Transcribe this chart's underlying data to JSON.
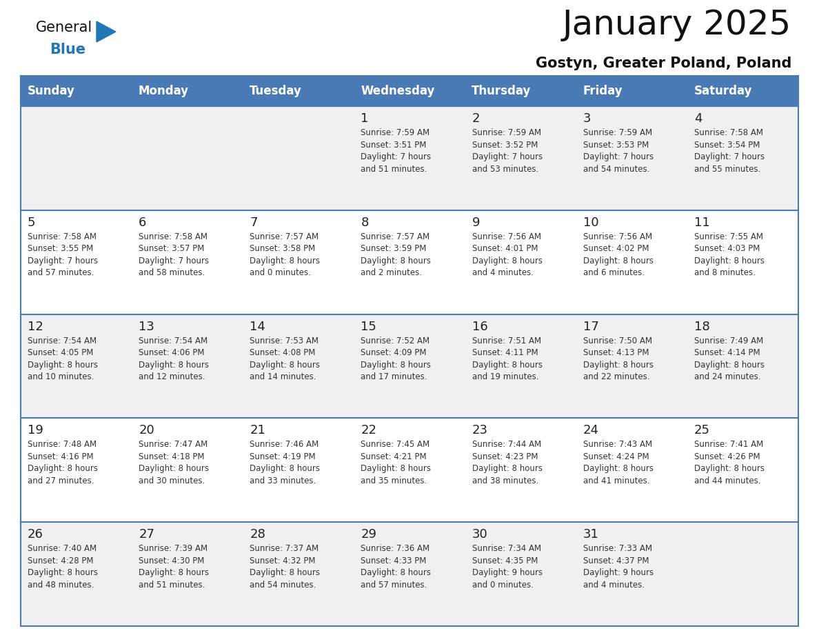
{
  "title": "January 2025",
  "subtitle": "Gostyn, Greater Poland, Poland",
  "days_of_week": [
    "Sunday",
    "Monday",
    "Tuesday",
    "Wednesday",
    "Thursday",
    "Friday",
    "Saturday"
  ],
  "header_bg": "#4a7ab5",
  "header_text": "#ffffff",
  "row_bg_light": "#f0f0f0",
  "row_bg_white": "#ffffff",
  "border_color": "#4a7ab5",
  "day_num_color": "#222222",
  "cell_text_color": "#333333",
  "title_color": "#111111",
  "subtitle_color": "#111111",
  "logo_general_color": "#111111",
  "logo_blue_color": "#2176b5",
  "calendar": [
    [
      {
        "day": null,
        "info": ""
      },
      {
        "day": null,
        "info": ""
      },
      {
        "day": null,
        "info": ""
      },
      {
        "day": 1,
        "info": "Sunrise: 7:59 AM\nSunset: 3:51 PM\nDaylight: 7 hours\nand 51 minutes."
      },
      {
        "day": 2,
        "info": "Sunrise: 7:59 AM\nSunset: 3:52 PM\nDaylight: 7 hours\nand 53 minutes."
      },
      {
        "day": 3,
        "info": "Sunrise: 7:59 AM\nSunset: 3:53 PM\nDaylight: 7 hours\nand 54 minutes."
      },
      {
        "day": 4,
        "info": "Sunrise: 7:58 AM\nSunset: 3:54 PM\nDaylight: 7 hours\nand 55 minutes."
      }
    ],
    [
      {
        "day": 5,
        "info": "Sunrise: 7:58 AM\nSunset: 3:55 PM\nDaylight: 7 hours\nand 57 minutes."
      },
      {
        "day": 6,
        "info": "Sunrise: 7:58 AM\nSunset: 3:57 PM\nDaylight: 7 hours\nand 58 minutes."
      },
      {
        "day": 7,
        "info": "Sunrise: 7:57 AM\nSunset: 3:58 PM\nDaylight: 8 hours\nand 0 minutes."
      },
      {
        "day": 8,
        "info": "Sunrise: 7:57 AM\nSunset: 3:59 PM\nDaylight: 8 hours\nand 2 minutes."
      },
      {
        "day": 9,
        "info": "Sunrise: 7:56 AM\nSunset: 4:01 PM\nDaylight: 8 hours\nand 4 minutes."
      },
      {
        "day": 10,
        "info": "Sunrise: 7:56 AM\nSunset: 4:02 PM\nDaylight: 8 hours\nand 6 minutes."
      },
      {
        "day": 11,
        "info": "Sunrise: 7:55 AM\nSunset: 4:03 PM\nDaylight: 8 hours\nand 8 minutes."
      }
    ],
    [
      {
        "day": 12,
        "info": "Sunrise: 7:54 AM\nSunset: 4:05 PM\nDaylight: 8 hours\nand 10 minutes."
      },
      {
        "day": 13,
        "info": "Sunrise: 7:54 AM\nSunset: 4:06 PM\nDaylight: 8 hours\nand 12 minutes."
      },
      {
        "day": 14,
        "info": "Sunrise: 7:53 AM\nSunset: 4:08 PM\nDaylight: 8 hours\nand 14 minutes."
      },
      {
        "day": 15,
        "info": "Sunrise: 7:52 AM\nSunset: 4:09 PM\nDaylight: 8 hours\nand 17 minutes."
      },
      {
        "day": 16,
        "info": "Sunrise: 7:51 AM\nSunset: 4:11 PM\nDaylight: 8 hours\nand 19 minutes."
      },
      {
        "day": 17,
        "info": "Sunrise: 7:50 AM\nSunset: 4:13 PM\nDaylight: 8 hours\nand 22 minutes."
      },
      {
        "day": 18,
        "info": "Sunrise: 7:49 AM\nSunset: 4:14 PM\nDaylight: 8 hours\nand 24 minutes."
      }
    ],
    [
      {
        "day": 19,
        "info": "Sunrise: 7:48 AM\nSunset: 4:16 PM\nDaylight: 8 hours\nand 27 minutes."
      },
      {
        "day": 20,
        "info": "Sunrise: 7:47 AM\nSunset: 4:18 PM\nDaylight: 8 hours\nand 30 minutes."
      },
      {
        "day": 21,
        "info": "Sunrise: 7:46 AM\nSunset: 4:19 PM\nDaylight: 8 hours\nand 33 minutes."
      },
      {
        "day": 22,
        "info": "Sunrise: 7:45 AM\nSunset: 4:21 PM\nDaylight: 8 hours\nand 35 minutes."
      },
      {
        "day": 23,
        "info": "Sunrise: 7:44 AM\nSunset: 4:23 PM\nDaylight: 8 hours\nand 38 minutes."
      },
      {
        "day": 24,
        "info": "Sunrise: 7:43 AM\nSunset: 4:24 PM\nDaylight: 8 hours\nand 41 minutes."
      },
      {
        "day": 25,
        "info": "Sunrise: 7:41 AM\nSunset: 4:26 PM\nDaylight: 8 hours\nand 44 minutes."
      }
    ],
    [
      {
        "day": 26,
        "info": "Sunrise: 7:40 AM\nSunset: 4:28 PM\nDaylight: 8 hours\nand 48 minutes."
      },
      {
        "day": 27,
        "info": "Sunrise: 7:39 AM\nSunset: 4:30 PM\nDaylight: 8 hours\nand 51 minutes."
      },
      {
        "day": 28,
        "info": "Sunrise: 7:37 AM\nSunset: 4:32 PM\nDaylight: 8 hours\nand 54 minutes."
      },
      {
        "day": 29,
        "info": "Sunrise: 7:36 AM\nSunset: 4:33 PM\nDaylight: 8 hours\nand 57 minutes."
      },
      {
        "day": 30,
        "info": "Sunrise: 7:34 AM\nSunset: 4:35 PM\nDaylight: 9 hours\nand 0 minutes."
      },
      {
        "day": 31,
        "info": "Sunrise: 7:33 AM\nSunset: 4:37 PM\nDaylight: 9 hours\nand 4 minutes."
      },
      {
        "day": null,
        "info": ""
      }
    ]
  ]
}
